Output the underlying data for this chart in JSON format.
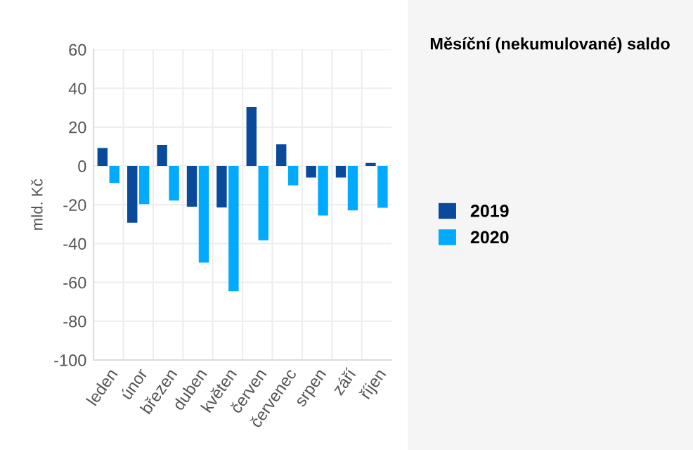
{
  "chart_data": {
    "type": "bar",
    "title": "Měsíční (nekumulované) saldo",
    "ylabel": "mld. Kč",
    "categories": [
      "leden",
      "únor",
      "březen",
      "duben",
      "květen",
      "červen",
      "červenec",
      "srpen",
      "září",
      "říjen"
    ],
    "series": [
      {
        "name": "2019",
        "color": "#0a4a9a",
        "values": [
          9.2,
          -29.3,
          10.9,
          -21,
          -21.4,
          30.4,
          11.1,
          -6,
          -6,
          1.5
        ]
      },
      {
        "name": "2020",
        "color": "#00aaff",
        "values": [
          -8.8,
          -19.7,
          -17.8,
          -49.8,
          -64.6,
          -38.3,
          -10,
          -25.5,
          -22.9,
          -21.6
        ]
      }
    ],
    "ylim": [
      -100,
      60
    ],
    "yticks": [
      -100,
      -80,
      -60,
      -40,
      -20,
      0,
      20,
      40,
      60
    ],
    "grid": true,
    "legend": "right"
  }
}
